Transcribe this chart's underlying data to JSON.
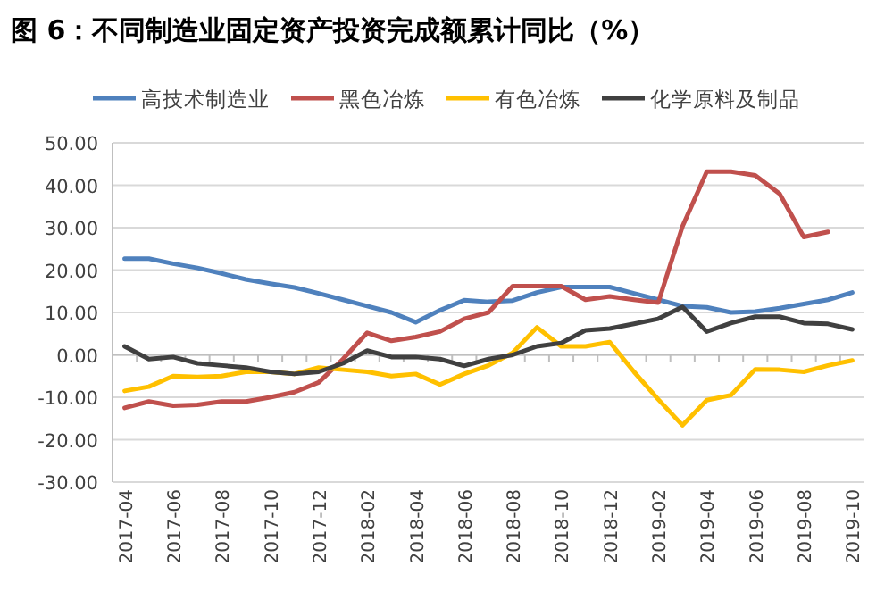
{
  "chart_data": {
    "type": "line",
    "title": "图 6：不同制造业固定资产投资完成额累计同比（%）",
    "categories": [
      "2017-04",
      null,
      "2017-06",
      null,
      "2017-08",
      null,
      "2017-10",
      null,
      "2017-12",
      null,
      "2018-02",
      null,
      "2018-04",
      null,
      "2018-06",
      null,
      "2018-08",
      null,
      "2018-10",
      null,
      "2018-12",
      null,
      "2019-02",
      null,
      "2019-04",
      null,
      "2019-06",
      null,
      "2019-08",
      null,
      "2019-10"
    ],
    "series": [
      {
        "name": "高技术制造业",
        "color": "#4f81bd",
        "values": [
          22.7,
          22.7,
          21.5,
          20.5,
          19.2,
          17.8,
          16.8,
          15.9,
          14.5,
          13,
          11.5,
          10,
          7.7,
          10.5,
          12.9,
          12.5,
          12.8,
          14.7,
          16,
          16,
          16,
          14.5,
          13,
          11.5,
          11.2,
          10,
          10.2,
          11,
          12,
          13,
          14.7
        ]
      },
      {
        "name": "黑色冶炼",
        "color": "#c0504d",
        "values": [
          -12.5,
          -11,
          -12,
          -11.8,
          -11,
          -11,
          -10,
          -8.8,
          -6.5,
          -1,
          5.2,
          3.3,
          4.2,
          5.5,
          8.5,
          10,
          16.2,
          16.2,
          16.2,
          13,
          13.8,
          13,
          12.3,
          30.3,
          43.2,
          43.2,
          42.3,
          38,
          27.8,
          29,
          null
        ]
      },
      {
        "name": "有色冶炼",
        "color": "#ffc000",
        "values": [
          -8.5,
          -7.5,
          -5,
          -5.2,
          -5,
          -4,
          -4,
          -4.5,
          -3,
          -3.5,
          -4,
          -5,
          -4.5,
          -7,
          -4.5,
          -2.5,
          0.5,
          6.5,
          2,
          2,
          3,
          -4,
          -10.5,
          -16.6,
          -10.7,
          -9.5,
          -3.4,
          -3.5,
          -4,
          -2.5,
          -1.3
        ]
      },
      {
        "name": "化学原料及制品",
        "color": "#404040",
        "values": [
          2,
          -1,
          -0.5,
          -2,
          -2.5,
          -3,
          -4,
          -4.5,
          -4,
          -2,
          1,
          -0.5,
          -0.5,
          -1,
          -2.6,
          -1,
          0,
          2,
          2.8,
          5.8,
          6.2,
          7.3,
          8.5,
          11.3,
          5.5,
          7.5,
          9,
          9,
          7.5,
          7.3,
          6
        ]
      }
    ],
    "ylim": [
      -30,
      50
    ],
    "yticks": [
      {
        "value": 50,
        "label": "50.00"
      },
      {
        "value": 40,
        "label": "40.00"
      },
      {
        "value": 30,
        "label": "30.00"
      },
      {
        "value": 20,
        "label": "20.00"
      },
      {
        "value": 10,
        "label": "10.00"
      },
      {
        "value": 0,
        "label": "0.00"
      },
      {
        "value": -10,
        "label": "-10.00"
      },
      {
        "value": -20,
        "label": "-20.00"
      },
      {
        "value": -30,
        "label": "-30.00"
      }
    ],
    "grid": "y",
    "legend": "top",
    "marker": "none",
    "line_style": "solid"
  }
}
